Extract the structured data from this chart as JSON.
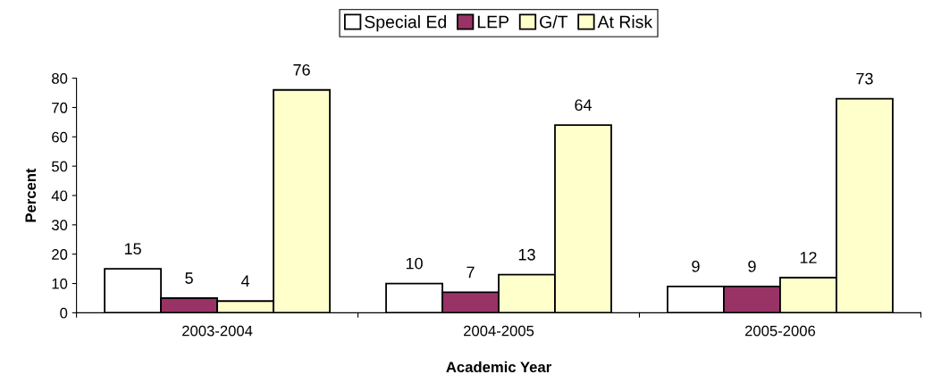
{
  "chart_data": {
    "type": "bar",
    "xlabel": "Academic Year",
    "ylabel": "Percent",
    "categories": [
      "2003-2004",
      "2004-2005",
      "2005-2006"
    ],
    "series": [
      {
        "name": "Special Ed",
        "color": "#ffffff",
        "values": [
          15,
          10,
          9
        ]
      },
      {
        "name": "LEP",
        "color": "#993366",
        "values": [
          5,
          7,
          9
        ]
      },
      {
        "name": "G/T",
        "color": "#ffffcc",
        "values": [
          4,
          13,
          12
        ]
      },
      {
        "name": "At Risk",
        "color": "#ffffcc",
        "values": [
          76,
          64,
          73
        ]
      }
    ],
    "ylim": [
      0,
      80
    ],
    "yticks": [
      0,
      10,
      20,
      30,
      40,
      50,
      60,
      70,
      80
    ],
    "data_labels": true,
    "grid": false,
    "legend": "top"
  }
}
